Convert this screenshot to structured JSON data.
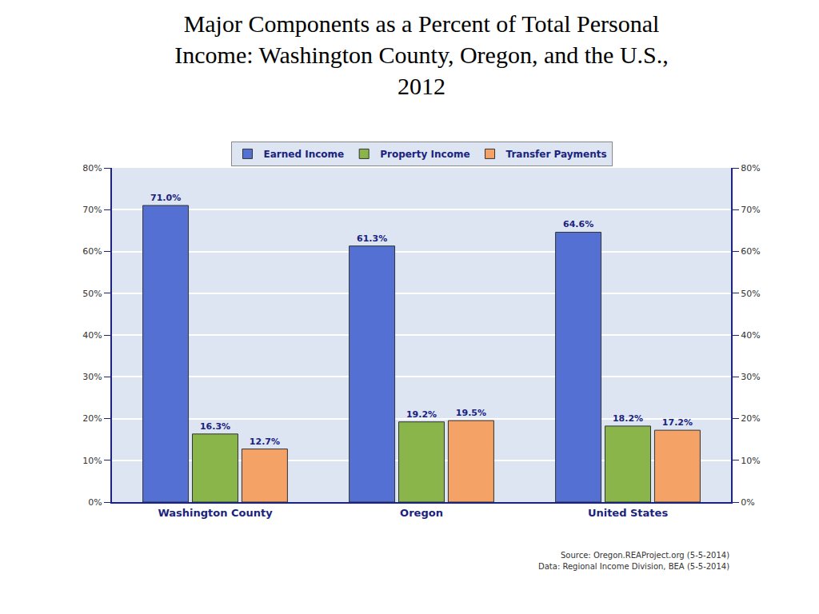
{
  "chart_data": {
    "type": "bar",
    "title": "Major Components as a Percent of Total Personal Income: Washington County, Oregon, and the U.S., 2012",
    "categories": [
      "Washington County",
      "Oregon",
      "United States"
    ],
    "series": [
      {
        "name": "Earned Income",
        "color": "#5470d2",
        "values": [
          71.0,
          61.3,
          64.6
        ],
        "value_labels": [
          "71.0%",
          "61.3%",
          "64.6%"
        ]
      },
      {
        "name": "Property Income",
        "color": "#8ab54a",
        "values": [
          16.3,
          19.2,
          18.2
        ],
        "value_labels": [
          "16.3%",
          "19.2%",
          "18.2%"
        ]
      },
      {
        "name": "Transfer Payments",
        "color": "#f4a266",
        "values": [
          12.7,
          19.5,
          17.2
        ],
        "value_labels": [
          "12.7%",
          "19.5%",
          "17.2%"
        ]
      }
    ],
    "ylim": [
      0,
      80
    ],
    "yticks": [
      {
        "value": 0,
        "label": "0%"
      },
      {
        "value": 10,
        "label": "10%"
      },
      {
        "value": 20,
        "label": "20%"
      },
      {
        "value": 30,
        "label": "30%"
      },
      {
        "value": 40,
        "label": "40%"
      },
      {
        "value": 50,
        "label": "50%"
      },
      {
        "value": 60,
        "label": "60%"
      },
      {
        "value": 70,
        "label": "70%"
      },
      {
        "value": 80,
        "label": "80%"
      }
    ],
    "y2lim": [
      0,
      80
    ],
    "y2ticks": [
      {
        "value": 0,
        "label": "0%"
      },
      {
        "value": 10,
        "label": "10%"
      },
      {
        "value": 20,
        "label": "20%"
      },
      {
        "value": 30,
        "label": "30%"
      },
      {
        "value": 40,
        "label": "40%"
      },
      {
        "value": 50,
        "label": "50%"
      },
      {
        "value": 60,
        "label": "60%"
      },
      {
        "value": 70,
        "label": "70%"
      },
      {
        "value": 80,
        "label": "80%"
      }
    ],
    "grid": true,
    "legend": "top",
    "data_labels": true,
    "annotations": [
      "Source: Oregon.REAProject.org (5-5-2014)",
      "Data: Regional Income Division, BEA (5-5-2014)"
    ]
  }
}
